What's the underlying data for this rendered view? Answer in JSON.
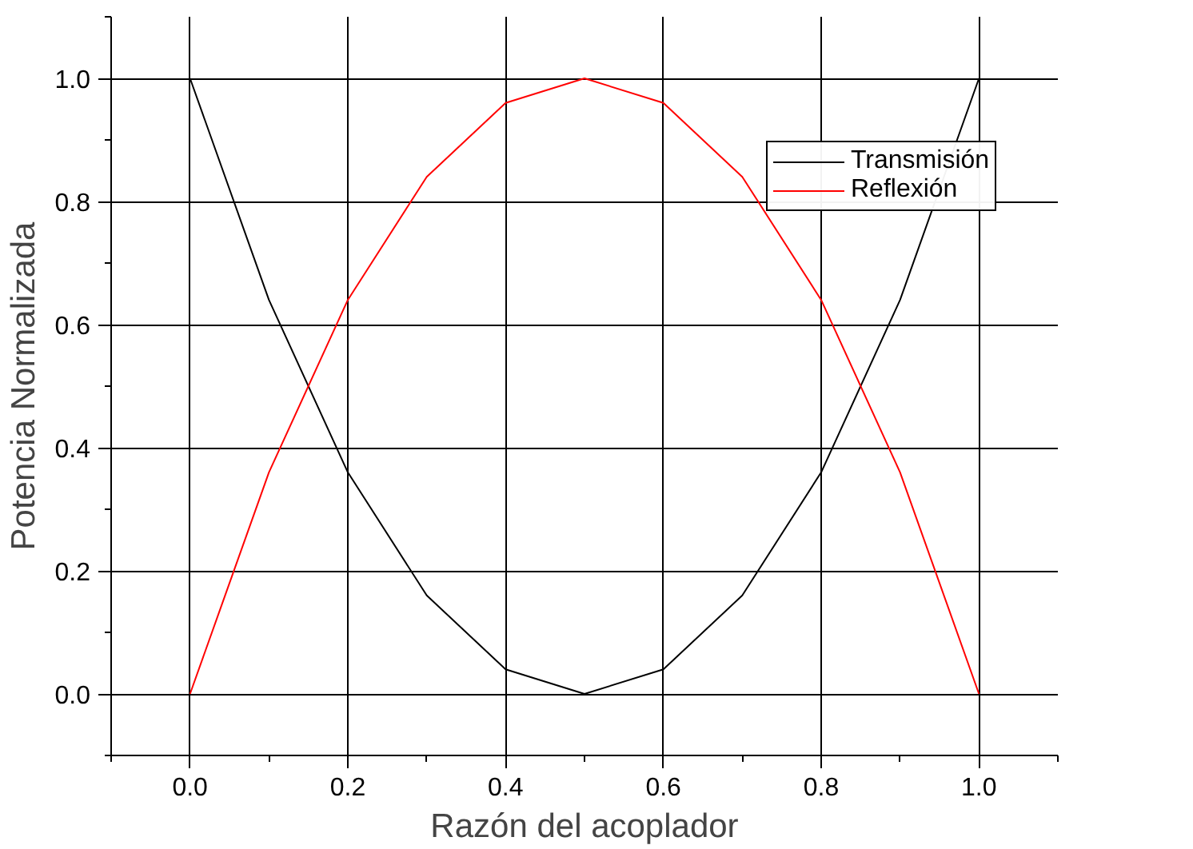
{
  "chart_data": {
    "type": "line",
    "xlabel": "Razón del acoplador",
    "ylabel": "Potencia Normalizada",
    "x": [
      0,
      0.1,
      0.2,
      0.3,
      0.4,
      0.5,
      0.6,
      0.7,
      0.8,
      0.9,
      1.0
    ],
    "series": [
      {
        "name": "Transmisión",
        "color": "#000000",
        "values": [
          1,
          0.64,
          0.36,
          0.16,
          0.04,
          0,
          0.04,
          0.16,
          0.36,
          0.64,
          1
        ]
      },
      {
        "name": "Reflexión",
        "color": "#ff0000",
        "values": [
          0,
          0.36,
          0.64,
          0.84,
          0.96,
          1,
          0.96,
          0.84,
          0.64,
          0.36,
          0
        ]
      }
    ],
    "xlim": [
      -0.1,
      1.1
    ],
    "ylim": [
      -0.1,
      1.1
    ],
    "xticks": [
      {
        "value": 0,
        "label": "0.0"
      },
      {
        "value": 0.2,
        "label": "0.2"
      },
      {
        "value": 0.4,
        "label": "0.4"
      },
      {
        "value": 0.6,
        "label": "0.6"
      },
      {
        "value": 0.8,
        "label": "0.8"
      },
      {
        "value": 1,
        "label": "1.0"
      }
    ],
    "yticks": [
      {
        "value": 0,
        "label": "0.0"
      },
      {
        "value": 0.2,
        "label": "0.2"
      },
      {
        "value": 0.4,
        "label": "0.4"
      },
      {
        "value": 0.6,
        "label": "0.6"
      },
      {
        "value": 0.8,
        "label": "0.8"
      },
      {
        "value": 1,
        "label": "1.0"
      }
    ],
    "grid": true,
    "legend": "top right",
    "marker": "none",
    "line_style": "solid"
  }
}
